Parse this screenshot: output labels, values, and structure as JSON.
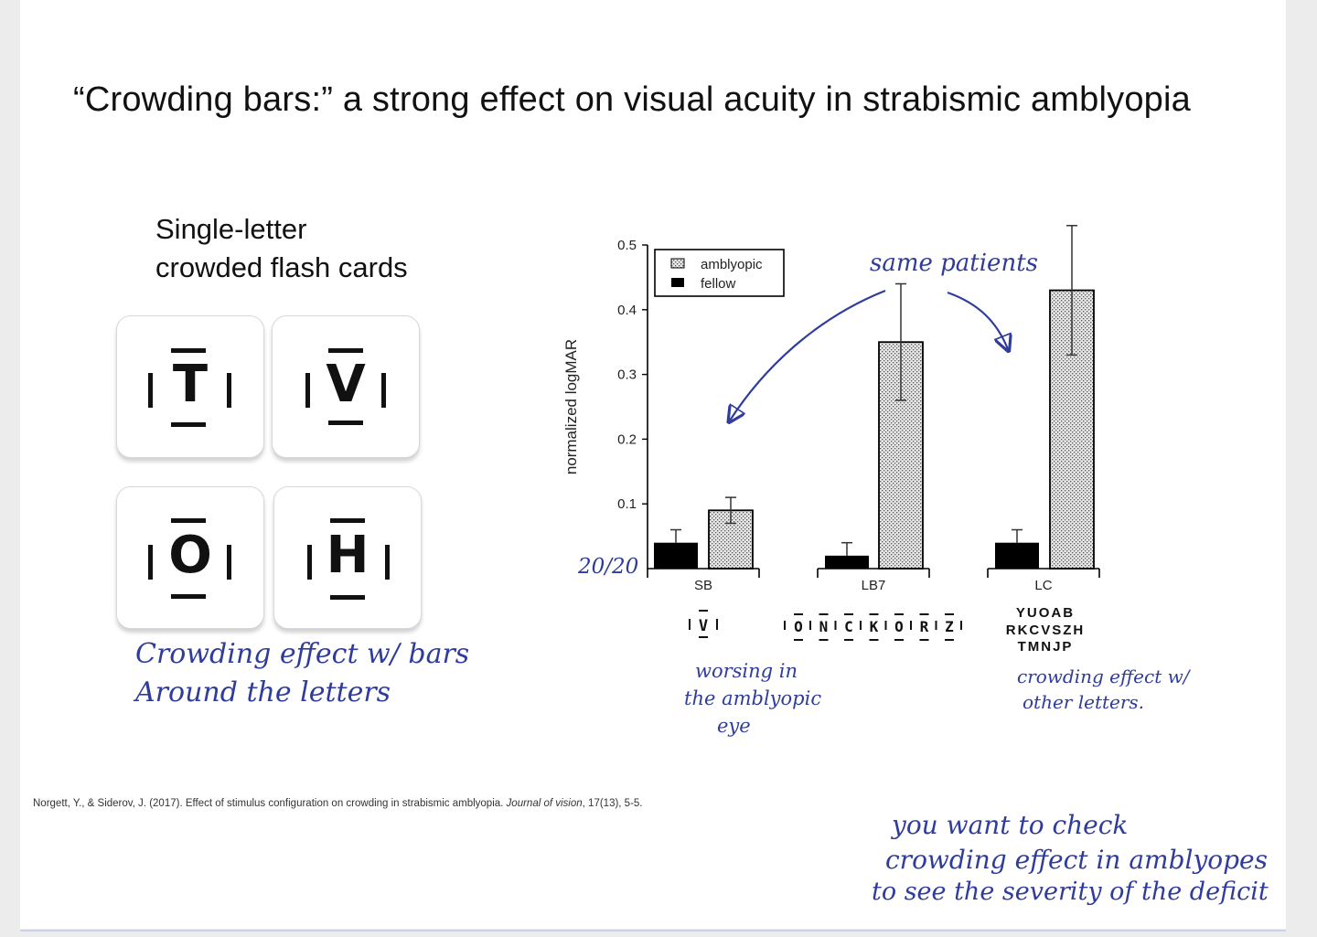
{
  "slide": {
    "title": "“Crowding bars:” a strong effect on visual acuity in strabismic amblyopia",
    "subtitle_line1": "Single-letter",
    "subtitle_line2": "crowded flash cards",
    "cards": [
      {
        "letter": "T"
      },
      {
        "letter": "V"
      },
      {
        "letter": "O"
      },
      {
        "letter": "H"
      }
    ],
    "citation_main": "Norgett, Y., & Siderov, J. (2017). Effect of stimulus configuration on crowding in strabismic amblyopia. ",
    "citation_journal": "Journal of vision",
    "citation_tail": ", 17(13), 5-5."
  },
  "annotations": {
    "crowding_bars_line1": "Crowding effect w/ bars",
    "crowding_bars_line2": "Around the letters",
    "same_patients": "same patients",
    "baseline": "20/20",
    "worsening_line1": "worsing in",
    "worsening_line2": "the amblyopic",
    "worsening_line3": "eye",
    "other_letters_line1": "crowding effect w/",
    "other_letters_line2": "other letters.",
    "takeaway_line1": "you want to check",
    "takeaway_line2": "crowding effect in amblyopes",
    "takeaway_line3": "to see the severity of the deficit"
  },
  "colors": {
    "ink": "#2f3c9c",
    "fellow_bar": "#000000",
    "amblyopic_bar": "#d9d9d9"
  },
  "chart_data": {
    "type": "bar",
    "ylabel": "normalized logMAR",
    "ylim": [
      0,
      0.5
    ],
    "yticks": [
      "0.1",
      "0.2",
      "0.3",
      "0.4",
      "0.5"
    ],
    "categories": [
      "SB",
      "LB7",
      "LC"
    ],
    "series": [
      {
        "name": "amblyopic",
        "values": [
          0.09,
          0.35,
          0.43
        ],
        "errors": [
          0.02,
          0.09,
          0.1
        ],
        "pattern": "stippled"
      },
      {
        "name": "fellow",
        "values": [
          0.04,
          0.02,
          0.04
        ],
        "errors": [
          0.02,
          0.02,
          0.02
        ],
        "pattern": "solid"
      }
    ],
    "legend_position": "top-left",
    "stimuli": {
      "SB": [
        "V"
      ],
      "LB7": [
        "O",
        "N",
        "C",
        "K",
        "O",
        "R",
        "Z"
      ],
      "LC": [
        "YUOAB",
        "RKCVSZH",
        "TMNJP"
      ]
    }
  }
}
